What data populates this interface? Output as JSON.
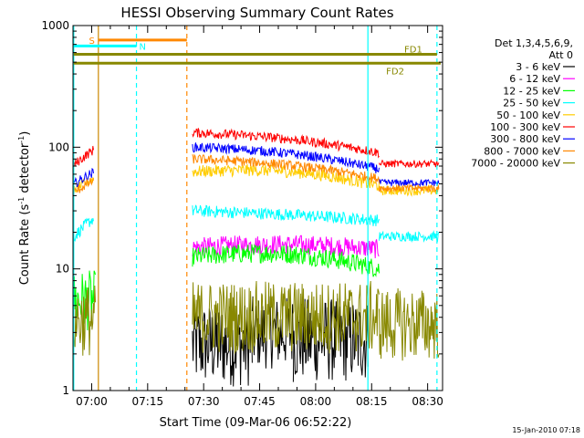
{
  "chart_data": {
    "type": "line",
    "title": "HESSI Observing Summary Count Rates",
    "xlabel": "Start Time (09-Mar-06 06:52:22)",
    "ylabel_main": "Count Rate (s",
    "ylabel_sup1": "-1",
    "ylabel_mid": " detector",
    "ylabel_sup2": "-1",
    "ylabel_end": ")",
    "yscale": "log",
    "ylim": [
      1,
      1000
    ],
    "xlim_min": [
      415,
      514
    ],
    "x_ticks": [
      {
        "t": 420,
        "label": "07:00"
      },
      {
        "t": 435,
        "label": "07:15"
      },
      {
        "t": 450,
        "label": "07:30"
      },
      {
        "t": 465,
        "label": "07:45"
      },
      {
        "t": 480,
        "label": "08:00"
      },
      {
        "t": 495,
        "label": "08:15"
      },
      {
        "t": 510,
        "label": "08:30"
      }
    ],
    "y_ticks": [
      {
        "v": 1,
        "label": "1"
      },
      {
        "v": 10,
        "label": "10"
      },
      {
        "v": 100,
        "label": "100"
      },
      {
        "v": 1000,
        "label": "1000"
      }
    ],
    "legend_title_1": "Det 1,3,4,5,6,9,",
    "legend_title_2": "Att 0",
    "legend_position": "right",
    "series": [
      {
        "name": "3 - 6 keV",
        "color": "#000000",
        "segments": [
          {
            "t0": 447,
            "t1": 463,
            "v": 2.4,
            "j": 0.35
          },
          {
            "t0": 463,
            "t1": 474,
            "v": 3.0,
            "j": 0.3
          },
          {
            "t0": 474,
            "t1": 494,
            "v": 2.6,
            "j": 0.35
          }
        ]
      },
      {
        "name": "6 - 12 keV",
        "color": "#ff00ff",
        "segments": [
          {
            "t0": 447,
            "t1": 497,
            "y0": 15,
            "y1": 14.5,
            "peak": 16,
            "j": 0.08
          }
        ]
      },
      {
        "name": "12 - 25 keV",
        "color": "#00ff00",
        "segments": [
          {
            "t0": 415,
            "t1": 421,
            "v": 5.5,
            "j": 0.25
          },
          {
            "t0": 447,
            "t1": 497,
            "y0": 12.5,
            "y1": 10,
            "peak": 13.5,
            "j": 0.08
          }
        ]
      },
      {
        "name": "25 - 50 keV",
        "color": "#00ffff",
        "segments": [
          {
            "t0": 415,
            "t1": 420.5,
            "y0": 18,
            "y1": 26,
            "j": 0.05
          },
          {
            "t0": 447,
            "t1": 497,
            "y0": 30,
            "y1": 25,
            "peak": 28,
            "j": 0.05
          },
          {
            "t0": 497,
            "t1": 513,
            "v": 18.5,
            "j": 0.04
          }
        ]
      },
      {
        "name": "50 - 100 keV",
        "color": "#ffcc00",
        "segments": [
          {
            "t0": 415,
            "t1": 420.5,
            "y0": 44,
            "y1": 55,
            "j": 0.04
          },
          {
            "t0": 447,
            "t1": 497,
            "y0": 63,
            "y1": 48,
            "peak": 64,
            "j": 0.05
          },
          {
            "t0": 497,
            "t1": 513,
            "v": 44,
            "j": 0.04
          }
        ]
      },
      {
        "name": "100 - 300 keV",
        "color": "#ff0000",
        "segments": [
          {
            "t0": 415,
            "t1": 420.5,
            "y0": 70,
            "y1": 95,
            "j": 0.04
          },
          {
            "t0": 447,
            "t1": 497,
            "y0": 132,
            "y1": 90,
            "peak": 118,
            "j": 0.04
          },
          {
            "t0": 497,
            "t1": 513,
            "v": 73,
            "j": 0.03
          }
        ]
      },
      {
        "name": "300 - 800 keV",
        "color": "#0000ff",
        "segments": [
          {
            "t0": 415,
            "t1": 420.5,
            "y0": 49,
            "y1": 62,
            "j": 0.04
          },
          {
            "t0": 447,
            "t1": 497,
            "y0": 100,
            "y1": 66,
            "peak": 90,
            "j": 0.04
          },
          {
            "t0": 497,
            "t1": 513,
            "v": 51,
            "j": 0.03
          }
        ]
      },
      {
        "name": "800 - 7000 keV",
        "color": "#ff8800",
        "segments": [
          {
            "t0": 415,
            "t1": 420.5,
            "y0": 42,
            "y1": 53,
            "j": 0.04
          },
          {
            "t0": 447,
            "t1": 497,
            "y0": 80,
            "y1": 55,
            "peak": 72,
            "j": 0.04
          },
          {
            "t0": 497,
            "t1": 513,
            "v": 46,
            "j": 0.03
          }
        ]
      },
      {
        "name": "7000 - 20000 keV",
        "color": "#888800",
        "segments": [
          {
            "t0": 415,
            "t1": 421,
            "v": 3.8,
            "j": 0.3
          },
          {
            "t0": 447,
            "t1": 497,
            "v": 4.0,
            "j": 0.3
          },
          {
            "t0": 497,
            "t1": 513,
            "v": 3.5,
            "j": 0.3
          }
        ]
      }
    ],
    "vertical_lines": [
      {
        "t": 415.2,
        "color": "#00ffff",
        "dash": false
      },
      {
        "t": 421.8,
        "color": "#cc8800",
        "dash": false
      },
      {
        "t": 432,
        "color": "#00ffff",
        "dash": true
      },
      {
        "t": 445.5,
        "color": "#ff8800",
        "dash": true
      },
      {
        "t": 494,
        "color": "#00ffff",
        "dash": false
      },
      {
        "t": 512.5,
        "color": "#00ffff",
        "dash": true
      }
    ],
    "flag_bars": [
      {
        "label": "S",
        "t0": 421.8,
        "t1": 445.5,
        "v": 760,
        "color": "#ff8800",
        "label_side": "left"
      },
      {
        "label": "N",
        "t0": 415.2,
        "t1": 432,
        "v": 680,
        "color": "#00ffff",
        "label_side": "right"
      },
      {
        "label": "FD1",
        "t0": 415.2,
        "t1": 512.5,
        "v": 580,
        "color": "#888800",
        "label_side": "above-right"
      },
      {
        "label": "FD2",
        "t0": 415.2,
        "t1": 513.5,
        "v": 490,
        "color": "#888800",
        "label_side": "below-right"
      }
    ],
    "timestamp": "15-Jan-2010 07:18"
  }
}
